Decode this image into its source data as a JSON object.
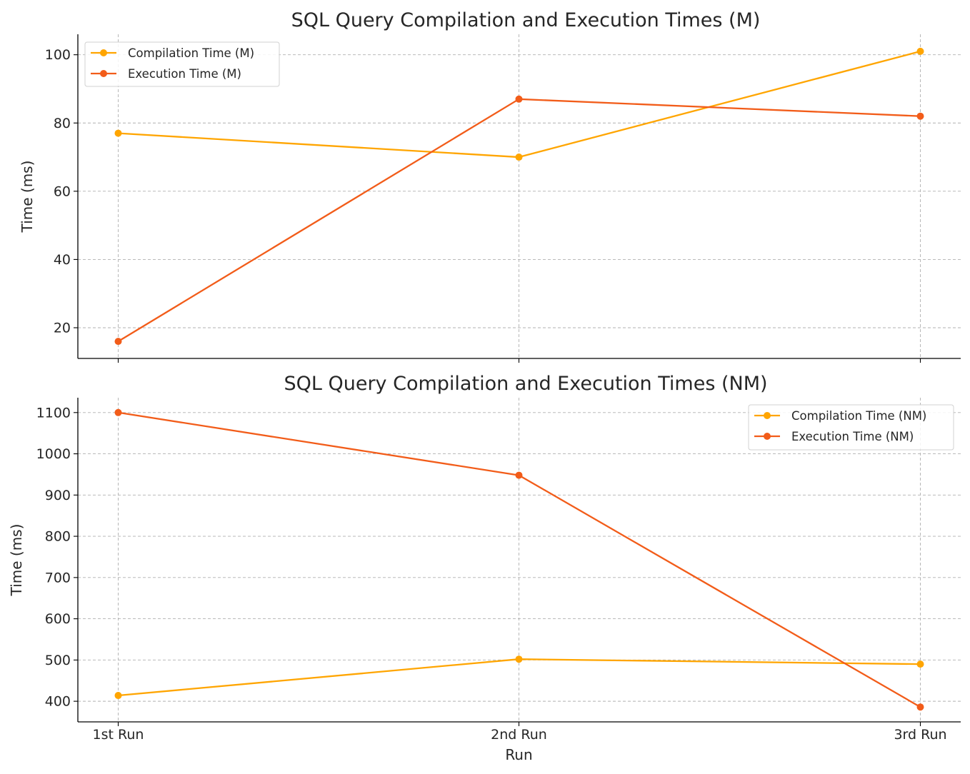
{
  "chart_data": [
    {
      "type": "line",
      "title": "SQL Query Compilation and Execution Times (M)",
      "xlabel": "",
      "ylabel": "Time (ms)",
      "categories": [
        "1st Run",
        "2nd Run",
        "3rd Run"
      ],
      "show_xticklabels": false,
      "ylim": [
        11,
        106
      ],
      "yticks": [
        20,
        40,
        60,
        80,
        100
      ],
      "grid": true,
      "legend_position": "upper-left",
      "series": [
        {
          "name": "Compilation Time (M)",
          "color": "#ffa500",
          "values": [
            77,
            70,
            101
          ]
        },
        {
          "name": "Execution Time (M)",
          "color": "#f25c19",
          "values": [
            16,
            87,
            82
          ]
        }
      ]
    },
    {
      "type": "line",
      "title": "SQL Query Compilation and Execution Times (NM)",
      "xlabel": "Run",
      "ylabel": "Time (ms)",
      "categories": [
        "1st Run",
        "2nd Run",
        "3rd Run"
      ],
      "show_xticklabels": true,
      "ylim": [
        350,
        1136
      ],
      "yticks": [
        400,
        500,
        600,
        700,
        800,
        900,
        1000,
        1100
      ],
      "grid": true,
      "legend_position": "upper-right",
      "series": [
        {
          "name": "Compilation Time (NM)",
          "color": "#ffa500",
          "values": [
            414,
            502,
            490
          ]
        },
        {
          "name": "Execution Time (NM)",
          "color": "#f25c19",
          "values": [
            1100,
            948,
            386
          ]
        }
      ]
    }
  ]
}
